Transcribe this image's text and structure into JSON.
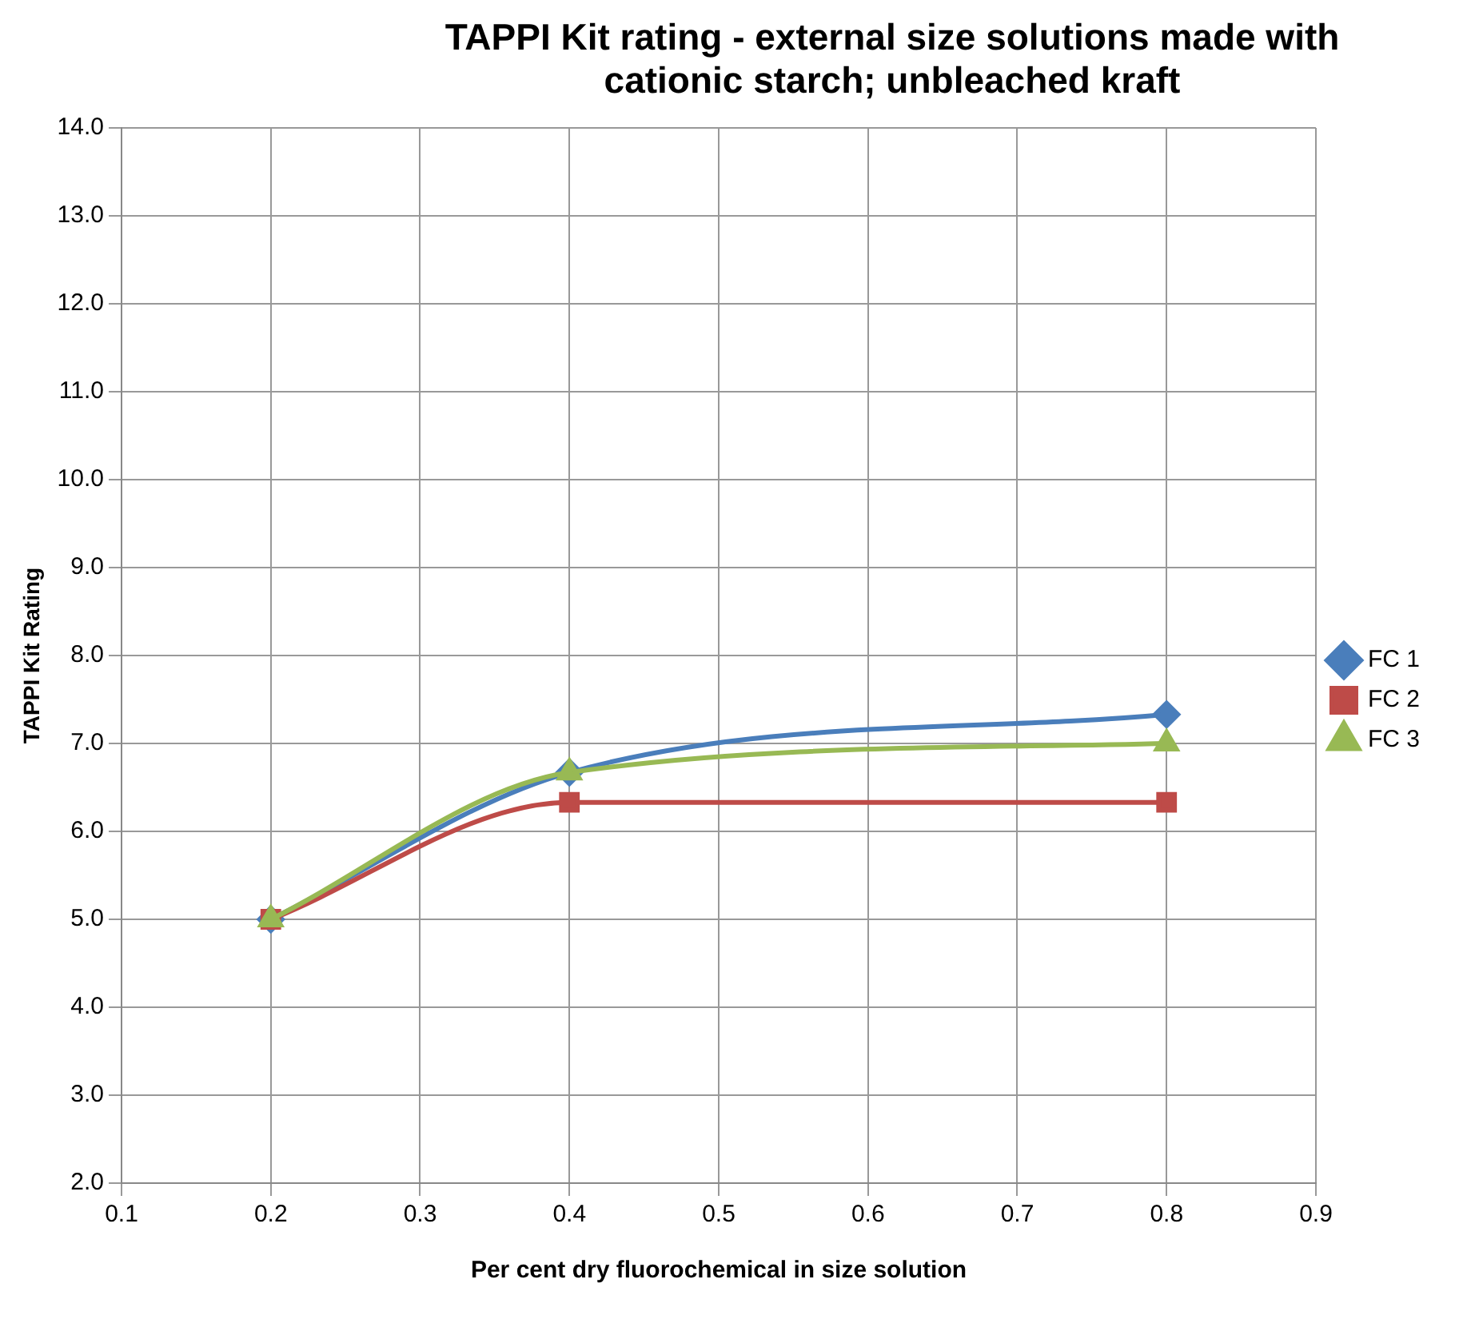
{
  "chart_data": {
    "type": "line",
    "title": "TAPPI Kit rating - external size solutions made with cationic starch; unbleached kraft",
    "xlabel": "Per cent dry fluorochemical in size solution",
    "ylabel": "TAPPI Kit Rating",
    "x": [
      0.2,
      0.4,
      0.8
    ],
    "series": [
      {
        "name": "FC 1",
        "color": "#4a7ebb",
        "marker": "diamond",
        "values": [
          5.0,
          6.67,
          7.33
        ]
      },
      {
        "name": "FC 2",
        "color": "#be4b48",
        "marker": "square",
        "values": [
          5.0,
          6.33,
          6.33
        ]
      },
      {
        "name": "FC 3",
        "color": "#98b954",
        "marker": "triangle",
        "values": [
          5.0,
          6.67,
          7.0
        ]
      }
    ],
    "xlim": [
      0.1,
      0.9
    ],
    "xticks": [
      {
        "value": 0.1,
        "label": "0.1"
      },
      {
        "value": 0.2,
        "label": "0.2"
      },
      {
        "value": 0.3,
        "label": "0.3"
      },
      {
        "value": 0.4,
        "label": "0.4"
      },
      {
        "value": 0.5,
        "label": "0.5"
      },
      {
        "value": 0.6,
        "label": "0.6"
      },
      {
        "value": 0.7,
        "label": "0.7"
      },
      {
        "value": 0.8,
        "label": "0.8"
      },
      {
        "value": 0.9,
        "label": "0.9"
      }
    ],
    "ylim": [
      2,
      14
    ],
    "yticks": [
      {
        "value": 2,
        "label": "2.0"
      },
      {
        "value": 3,
        "label": "3.0"
      },
      {
        "value": 4,
        "label": "4.0"
      },
      {
        "value": 5,
        "label": "5.0"
      },
      {
        "value": 6,
        "label": "6.0"
      },
      {
        "value": 7,
        "label": "7.0"
      },
      {
        "value": 8,
        "label": "8.0"
      },
      {
        "value": 9,
        "label": "9.0"
      },
      {
        "value": 10,
        "label": "10.0"
      },
      {
        "value": 11,
        "label": "11.0"
      },
      {
        "value": 12,
        "label": "12.0"
      },
      {
        "value": 13,
        "label": "13.0"
      },
      {
        "value": 14,
        "label": "14.0"
      }
    ],
    "grid": true,
    "legend": "right",
    "line_style": "solid"
  }
}
